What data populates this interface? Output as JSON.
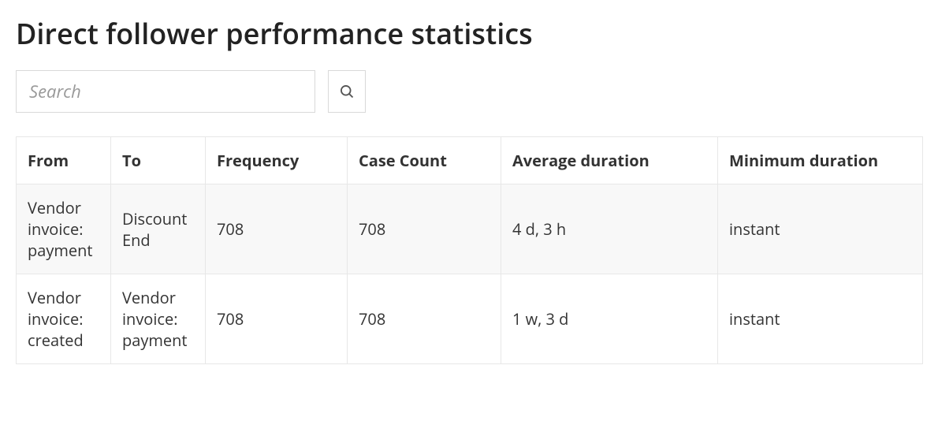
{
  "title": "Direct follower performance statistics",
  "search": {
    "placeholder": "Search"
  },
  "table": {
    "columns": [
      {
        "key": "from",
        "label": "From",
        "class": "col-from"
      },
      {
        "key": "to",
        "label": "To",
        "class": "col-to"
      },
      {
        "key": "frequency",
        "label": "Frequency",
        "class": "col-freq"
      },
      {
        "key": "case_count",
        "label": "Case Count",
        "class": "col-case"
      },
      {
        "key": "avg_dur",
        "label": "Average duration",
        "class": "col-avg"
      },
      {
        "key": "min_dur",
        "label": "Minimum duration",
        "class": "col-min"
      }
    ],
    "rows": [
      {
        "from": "Vendor invoice: payment",
        "to": "Discount End",
        "frequency": "708",
        "case_count": "708",
        "avg_dur": "4 d, 3 h",
        "min_dur": "instant"
      },
      {
        "from": "Vendor invoice: created",
        "to": "Vendor invoice: payment",
        "frequency": "708",
        "case_count": "708",
        "avg_dur": "1 w, 3 d",
        "min_dur": "instant"
      }
    ]
  },
  "style": {
    "border_color": "#e7e7e7",
    "odd_row_bg": "#f8f8f8",
    "even_row_bg": "#ffffff",
    "text_color": "#333333",
    "placeholder_color": "#999999"
  }
}
